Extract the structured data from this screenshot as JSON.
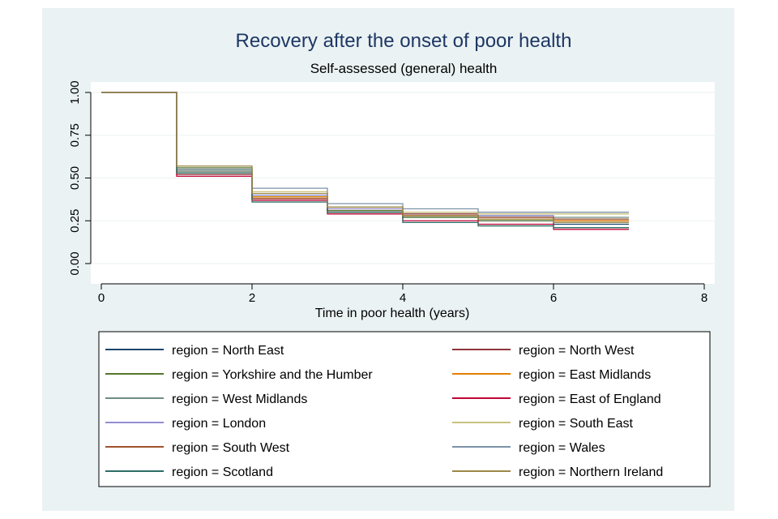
{
  "chart_data": {
    "type": "line",
    "title": "Recovery after the onset of poor health",
    "subtitle": "Self-assessed (general) health",
    "xlabel": "Time in poor health (years)",
    "ylabel": "",
    "xlim": [
      0,
      8
    ],
    "ylim": [
      0,
      1
    ],
    "xticks": [
      "0",
      "2",
      "4",
      "6",
      "8"
    ],
    "yticks": [
      "0.00",
      "0.25",
      "0.50",
      "0.75",
      "1.00"
    ],
    "x": [
      0,
      1,
      2,
      3,
      4,
      5,
      6,
      7
    ],
    "step": true,
    "grid": true,
    "legend_position": "bottom",
    "legend": [
      "region = North East",
      "region = North West",
      "region = Yorkshire and the Humber",
      "region = East Midlands",
      "region = West Midlands",
      "region = East of England",
      "region = London",
      "region = South East",
      "region = South West",
      "region = Wales",
      "region = Scotland",
      "region = Northern Ireland"
    ],
    "series": [
      {
        "name": "region = North East",
        "color": "#1a476f",
        "values": [
          1.0,
          0.55,
          0.39,
          0.31,
          0.27,
          0.25,
          0.23,
          0.23
        ]
      },
      {
        "name": "region = North West",
        "color": "#90353b",
        "values": [
          1.0,
          0.52,
          0.38,
          0.31,
          0.29,
          0.27,
          0.25,
          0.25
        ]
      },
      {
        "name": "region = Yorkshire and the Humber",
        "color": "#55752f",
        "values": [
          1.0,
          0.56,
          0.4,
          0.31,
          0.27,
          0.25,
          0.24,
          0.24
        ]
      },
      {
        "name": "region = East Midlands",
        "color": "#e37e00",
        "values": [
          1.0,
          0.54,
          0.39,
          0.32,
          0.28,
          0.26,
          0.25,
          0.25
        ]
      },
      {
        "name": "region = West Midlands",
        "color": "#6e8e84",
        "values": [
          1.0,
          0.54,
          0.4,
          0.33,
          0.3,
          0.28,
          0.27,
          0.27
        ]
      },
      {
        "name": "region = East of England",
        "color": "#c10534",
        "values": [
          1.0,
          0.51,
          0.37,
          0.29,
          0.25,
          0.23,
          0.2,
          0.2
        ]
      },
      {
        "name": "region = London",
        "color": "#938dd2",
        "values": [
          1.0,
          0.53,
          0.4,
          0.32,
          0.3,
          0.28,
          0.26,
          0.26
        ]
      },
      {
        "name": "region = South East",
        "color": "#cac27e",
        "values": [
          1.0,
          0.55,
          0.42,
          0.33,
          0.3,
          0.29,
          0.29,
          0.29
        ]
      },
      {
        "name": "region = South West",
        "color": "#a0522d",
        "values": [
          1.0,
          0.53,
          0.38,
          0.3,
          0.28,
          0.27,
          0.26,
          0.26
        ]
      },
      {
        "name": "region = Wales",
        "color": "#7b92a8",
        "values": [
          1.0,
          0.55,
          0.44,
          0.35,
          0.32,
          0.3,
          0.3,
          0.3
        ]
      },
      {
        "name": "region = Scotland",
        "color": "#2d6d66",
        "values": [
          1.0,
          0.53,
          0.36,
          0.3,
          0.24,
          0.22,
          0.21,
          0.21
        ]
      },
      {
        "name": "region = Northern Ireland",
        "color": "#9c8847",
        "values": [
          1.0,
          0.57,
          0.41,
          0.33,
          0.28,
          0.26,
          0.24,
          0.24
        ]
      }
    ]
  }
}
